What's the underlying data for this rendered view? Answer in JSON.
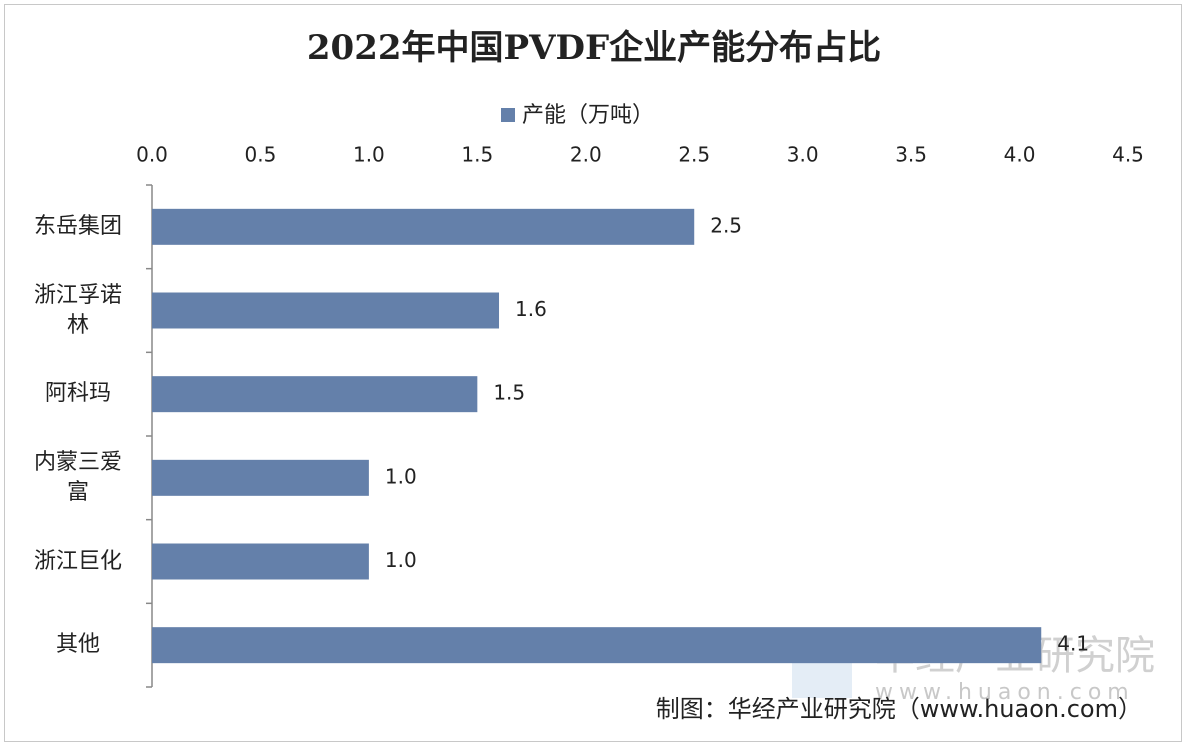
{
  "chart_data": {
    "type": "bar",
    "orientation": "horizontal",
    "title": "2022年中国PVDF企业产能分布占比",
    "categories": [
      "东岳集团",
      "浙江孚诺林",
      "阿科玛",
      "内蒙三爱富",
      "浙江巨化",
      "其他"
    ],
    "series": [
      {
        "name": "产能（万吨）",
        "color": "#6480aa",
        "values": [
          2.5,
          1.6,
          1.5,
          1.0,
          1.0,
          4.1
        ],
        "value_labels": [
          "2.5",
          "1.6",
          "1.5",
          "1.0",
          "1.0",
          "4.1"
        ]
      }
    ],
    "xlim": [
      0,
      4.5
    ],
    "xticks": [
      {
        "value": 0,
        "label": "0.0"
      },
      0.5,
      {
        "value": 1,
        "label": "1.0"
      },
      1.5,
      {
        "value": 2,
        "label": "2.0"
      },
      2.5,
      {
        "value": 3,
        "label": "3.0"
      },
      3.5,
      {
        "value": 4,
        "label": "4.0"
      },
      4.5
    ],
    "legend": "top",
    "source": "制图：华经产业研究院（www.huaon.com）",
    "watermark": [
      "华经产业研究院",
      "www.huaon.com"
    ]
  }
}
